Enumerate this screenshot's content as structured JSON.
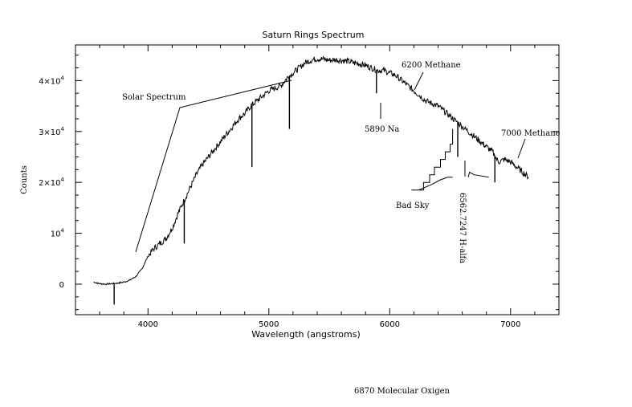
{
  "chart_data": {
    "type": "line",
    "title": "Saturn Rings Spectrum",
    "xlabel": "Wavelength (angstroms)",
    "ylabel": "Counts",
    "xlim": [
      3400,
      7400
    ],
    "ylim": [
      -6000,
      47000
    ],
    "x_ticks": [
      {
        "value": 4000,
        "label": "4000"
      },
      {
        "value": 5000,
        "label": "5000"
      },
      {
        "value": 6000,
        "label": "6000"
      },
      {
        "value": 7000,
        "label": "7000"
      }
    ],
    "y_ticks": [
      {
        "value": 0,
        "label": "0",
        "exp": ""
      },
      {
        "value": 10000,
        "label": "10",
        "exp": "4"
      },
      {
        "value": 20000,
        "label": "2×10",
        "exp": "4"
      },
      {
        "value": 30000,
        "label": "3×10",
        "exp": "4"
      },
      {
        "value": 40000,
        "label": "4×10",
        "exp": "4"
      }
    ],
    "series": [
      {
        "x": [
          3550,
          3600,
          3650,
          3700,
          3750,
          3800,
          3850,
          3900,
          3950,
          4000,
          4050,
          4100,
          4150,
          4200,
          4250,
          4300,
          4350,
          4400,
          4450,
          4500,
          4550,
          4600,
          4650,
          4700,
          4750,
          4800,
          4850,
          4900,
          4950,
          5000,
          5050,
          5100,
          5150,
          5200,
          5250,
          5300,
          5350,
          5400,
          5450,
          5500,
          5550,
          5600,
          5650,
          5700,
          5750,
          5800,
          5850,
          5900,
          5950,
          6000,
          6050,
          6100,
          6150,
          6200,
          6250,
          6300,
          6350,
          6400,
          6450,
          6500,
          6550,
          6600,
          6650,
          6700,
          6750,
          6800,
          6850,
          6900,
          6950,
          7000,
          7050,
          7100,
          7150
        ],
        "y": [
          400,
          100,
          0,
          100,
          200,
          400,
          800,
          1500,
          3000,
          5500,
          7000,
          8000,
          9000,
          11000,
          14000,
          16500,
          19000,
          21500,
          23500,
          25000,
          26500,
          28000,
          29500,
          31000,
          32500,
          33500,
          35000,
          36000,
          37000,
          38000,
          38500,
          39000,
          40500,
          41500,
          42500,
          43500,
          44000,
          44300,
          44200,
          44000,
          44100,
          44000,
          43800,
          43500,
          43300,
          43000,
          42500,
          42000,
          42000,
          41500,
          41000,
          40000,
          39000,
          38000,
          37000,
          36000,
          35500,
          35000,
          34000,
          33000,
          32000,
          31000,
          30000,
          29000,
          28000,
          27000,
          26000,
          24000,
          24500,
          24000,
          23000,
          22000,
          21000
        ]
      }
    ],
    "dips": [
      {
        "x": 3720,
        "y": -4000
      },
      {
        "x": 4300,
        "y": 8000
      },
      {
        "x": 4860,
        "y": 23000
      },
      {
        "x": 5170,
        "y": 30500
      },
      {
        "x": 5890,
        "y": 37500
      },
      {
        "x": 6563,
        "y": 25000
      },
      {
        "x": 6870,
        "y": 20000
      }
    ],
    "bad_sky": [
      [
        [
          6180,
          18500
        ],
        [
          6280,
          18500
        ],
        [
          6280,
          20000
        ],
        [
          6330,
          20000
        ],
        [
          6330,
          21500
        ],
        [
          6370,
          21500
        ],
        [
          6370,
          23000
        ],
        [
          6420,
          23000
        ],
        [
          6420,
          24500
        ],
        [
          6460,
          24500
        ],
        [
          6460,
          26000
        ],
        [
          6500,
          26000
        ],
        [
          6500,
          27500
        ],
        [
          6520,
          27500
        ],
        [
          6520,
          30500
        ]
      ],
      [
        [
          6240,
          18500
        ],
        [
          6340,
          19500
        ],
        [
          6420,
          20500
        ],
        [
          6480,
          21000
        ],
        [
          6520,
          21000
        ]
      ],
      [
        [
          6650,
          21000
        ],
        [
          6660,
          22000
        ],
        [
          6700,
          21500
        ],
        [
          6820,
          21000
        ]
      ]
    ],
    "annotations": [
      {
        "text": "Solar Spectrum"
      },
      {
        "text": "6200 Methane"
      },
      {
        "text": "5890 Na"
      },
      {
        "text": "7000 Methane"
      },
      {
        "text": "Bad Sky"
      },
      {
        "text": "6562.7247 H-alfa"
      },
      {
        "text": "6870 Molecular Oxigen"
      }
    ],
    "grid": false,
    "legend": "none"
  }
}
